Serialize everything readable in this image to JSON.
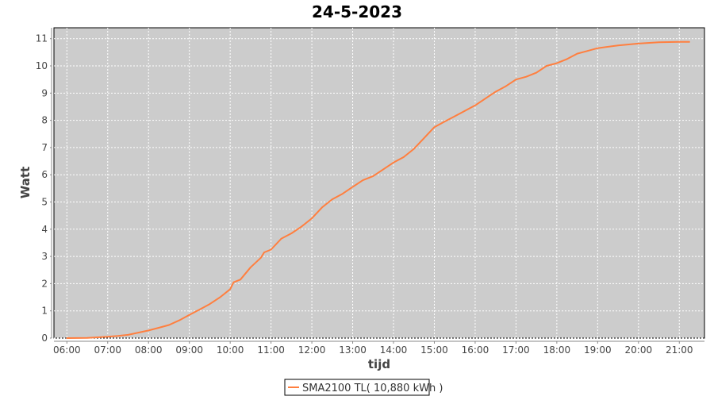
{
  "chart_data": {
    "type": "line",
    "title": "24-5-2023",
    "xlabel": "tijd",
    "ylabel": "Watt",
    "xlim": [
      "05:41",
      "21:37"
    ],
    "ylim": [
      0,
      11.4
    ],
    "x_ticks": [
      "06:00",
      "07:00",
      "08:00",
      "09:00",
      "10:00",
      "11:00",
      "12:00",
      "13:00",
      "14:00",
      "15:00",
      "16:00",
      "17:00",
      "18:00",
      "19:00",
      "20:00",
      "21:00"
    ],
    "y_ticks": [
      0,
      1,
      2,
      3,
      4,
      5,
      6,
      7,
      8,
      9,
      10,
      11
    ],
    "grid": true,
    "legend_position": "bottom",
    "background": "#cccccc",
    "series": [
      {
        "name": "SMA2100 TL( 10,880 kWh )",
        "color": "#ff7f3f",
        "x": [
          "06:00",
          "06:30",
          "07:00",
          "07:15",
          "07:30",
          "07:45",
          "08:00",
          "08:15",
          "08:30",
          "08:45",
          "09:00",
          "09:15",
          "09:30",
          "09:45",
          "10:00",
          "10:05",
          "10:15",
          "10:30",
          "10:45",
          "10:50",
          "11:00",
          "11:15",
          "11:30",
          "11:45",
          "12:00",
          "12:15",
          "12:30",
          "12:45",
          "13:00",
          "13:15",
          "13:30",
          "13:45",
          "14:00",
          "14:15",
          "14:30",
          "14:45",
          "15:00",
          "15:15",
          "15:30",
          "15:45",
          "16:00",
          "16:15",
          "16:30",
          "16:45",
          "17:00",
          "17:15",
          "17:30",
          "17:45",
          "18:00",
          "18:15",
          "18:30",
          "18:45",
          "19:00",
          "19:30",
          "20:00",
          "20:30",
          "21:00",
          "21:15"
        ],
        "y": [
          0,
          0.01,
          0.05,
          0.08,
          0.12,
          0.2,
          0.28,
          0.38,
          0.48,
          0.65,
          0.85,
          1.05,
          1.25,
          1.5,
          1.8,
          2.05,
          2.15,
          2.6,
          2.95,
          3.15,
          3.25,
          3.65,
          3.85,
          4.1,
          4.4,
          4.8,
          5.1,
          5.3,
          5.55,
          5.8,
          5.95,
          6.2,
          6.45,
          6.65,
          6.95,
          7.35,
          7.75,
          7.95,
          8.15,
          8.35,
          8.55,
          8.8,
          9.05,
          9.25,
          9.5,
          9.6,
          9.75,
          10.0,
          10.1,
          10.25,
          10.45,
          10.55,
          10.65,
          10.75,
          10.82,
          10.87,
          10.88,
          10.88
        ]
      }
    ]
  }
}
